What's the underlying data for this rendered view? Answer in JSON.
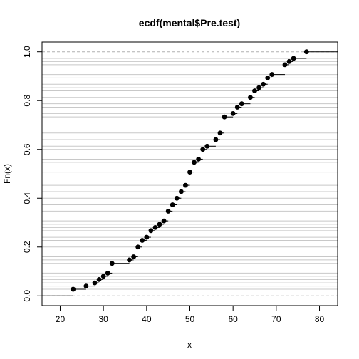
{
  "chart_data": {
    "type": "scatter",
    "title": "ecdf(mental$Pre.test)",
    "xlabel": "x",
    "ylabel": "Fn(x)",
    "xlim": [
      15.8,
      84.2
    ],
    "ylim": [
      -0.04,
      1.04
    ],
    "x_ticks": [
      {
        "value": 20,
        "label": "20"
      },
      {
        "value": 30,
        "label": "30"
      },
      {
        "value": 40,
        "label": "40"
      },
      {
        "value": 50,
        "label": "50"
      },
      {
        "value": 60,
        "label": "60"
      },
      {
        "value": 70,
        "label": "70"
      },
      {
        "value": 80,
        "label": "80"
      }
    ],
    "y_ticks": [
      {
        "value": 0.0,
        "label": "0.0"
      },
      {
        "value": 0.2,
        "label": "0.2"
      },
      {
        "value": 0.4,
        "label": "0.4"
      },
      {
        "value": 0.6,
        "label": "0.6"
      },
      {
        "value": 0.8,
        "label": "0.8"
      },
      {
        "value": 1.0,
        "label": "1.0"
      }
    ],
    "grid": "horizontal lines at each step level",
    "x": [
      23,
      26,
      28,
      29,
      30,
      31,
      32,
      36,
      37,
      38,
      39,
      40,
      41,
      42,
      43,
      44,
      45,
      46,
      47,
      48,
      49,
      50,
      51,
      52,
      53,
      54,
      56,
      57,
      58,
      60,
      61,
      62,
      64,
      65,
      66,
      67,
      68,
      69,
      72,
      73,
      74,
      77
    ],
    "y": [
      0.027,
      0.04,
      0.053,
      0.067,
      0.08,
      0.093,
      0.133,
      0.147,
      0.16,
      0.2,
      0.227,
      0.24,
      0.267,
      0.28,
      0.293,
      0.307,
      0.347,
      0.373,
      0.4,
      0.427,
      0.453,
      0.507,
      0.547,
      0.56,
      0.6,
      0.613,
      0.64,
      0.667,
      0.733,
      0.747,
      0.773,
      0.787,
      0.813,
      0.84,
      0.853,
      0.867,
      0.893,
      0.907,
      0.947,
      0.96,
      0.973,
      1.0
    ]
  }
}
